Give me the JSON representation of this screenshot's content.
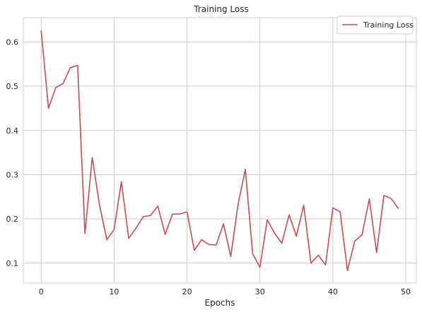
{
  "chart_data": {
    "type": "line",
    "title": "Training Loss",
    "xlabel": "Epochs",
    "ylabel": "",
    "xlim": [
      -2.45,
      51.45
    ],
    "ylim": [
      0.055,
      0.655
    ],
    "xticks": [
      0,
      10,
      20,
      30,
      40,
      50
    ],
    "yticks": [
      0.1,
      0.2,
      0.3,
      0.4,
      0.5,
      0.6
    ],
    "ytick_labels": [
      "0.1",
      "0.2",
      "0.3",
      "0.4",
      "0.5",
      "0.6"
    ],
    "grid": true,
    "legend_position": "top-right",
    "series": [
      {
        "name": "Training Loss",
        "color": "#c44e52",
        "x": [
          0,
          1,
          2,
          3,
          4,
          5,
          6,
          7,
          8,
          9,
          10,
          11,
          12,
          13,
          14,
          15,
          16,
          17,
          18,
          19,
          20,
          21,
          22,
          23,
          24,
          25,
          26,
          27,
          28,
          29,
          30,
          31,
          32,
          33,
          34,
          35,
          36,
          37,
          38,
          39,
          40,
          41,
          42,
          43,
          44,
          45,
          46,
          47,
          48,
          49
        ],
        "y": [
          0.626,
          0.45,
          0.497,
          0.506,
          0.542,
          0.547,
          0.167,
          0.339,
          0.231,
          0.153,
          0.176,
          0.284,
          0.156,
          0.179,
          0.205,
          0.208,
          0.229,
          0.165,
          0.211,
          0.211,
          0.216,
          0.129,
          0.153,
          0.142,
          0.141,
          0.189,
          0.115,
          0.233,
          0.312,
          0.121,
          0.091,
          0.198,
          0.168,
          0.145,
          0.209,
          0.161,
          0.231,
          0.1,
          0.118,
          0.096,
          0.225,
          0.216,
          0.083,
          0.15,
          0.164,
          0.245,
          0.124,
          0.253,
          0.246,
          0.223
        ]
      }
    ]
  }
}
